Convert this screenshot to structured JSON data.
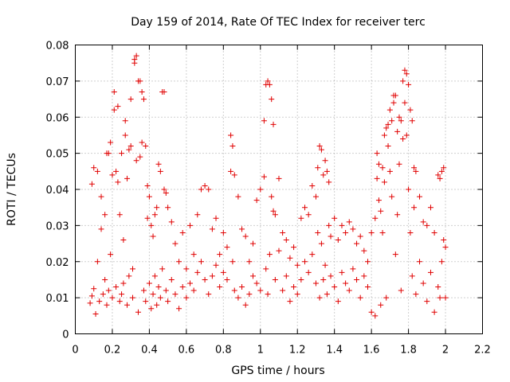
{
  "chart_data": {
    "type": "scatter",
    "title": "Day 159 of 2014, Rate Of TEC Index for receiver terc",
    "xlabel": "GPS time / hours",
    "ylabel": "ROTI / TECUs",
    "xlim": [
      0,
      2.2
    ],
    "ylim": [
      0,
      0.08
    ],
    "xticks": [
      "0",
      "0.2",
      "0.4",
      "0.6",
      "0.8",
      "1",
      "1.2",
      "1.4",
      "1.6",
      "1.8",
      "2",
      "2.2"
    ],
    "yticks": [
      "0",
      "0.01",
      "0.02",
      "0.03",
      "0.04",
      "0.05",
      "0.06",
      "0.07",
      "0.08"
    ],
    "grid": true,
    "marker": "+",
    "color": "#e00000",
    "series": [
      {
        "name": "terc",
        "points": [
          [
            0.08,
            0.0085
          ],
          [
            0.09,
            0.0105
          ],
          [
            0.09,
            0.0415
          ],
          [
            0.1,
            0.046
          ],
          [
            0.1,
            0.0125
          ],
          [
            0.11,
            0.0055
          ],
          [
            0.12,
            0.02
          ],
          [
            0.12,
            0.045
          ],
          [
            0.13,
            0.009
          ],
          [
            0.14,
            0.029
          ],
          [
            0.14,
            0.038
          ],
          [
            0.15,
            0.011
          ],
          [
            0.16,
            0.033
          ],
          [
            0.16,
            0.015
          ],
          [
            0.17,
            0.05
          ],
          [
            0.17,
            0.008
          ],
          [
            0.18,
            0.05
          ],
          [
            0.18,
            0.012
          ],
          [
            0.19,
            0.053
          ],
          [
            0.19,
            0.022
          ],
          [
            0.2,
            0.044
          ],
          [
            0.2,
            0.01
          ],
          [
            0.21,
            0.062
          ],
          [
            0.21,
            0.067
          ],
          [
            0.22,
            0.045
          ],
          [
            0.22,
            0.013
          ],
          [
            0.23,
            0.042
          ],
          [
            0.23,
            0.063
          ],
          [
            0.24,
            0.033
          ],
          [
            0.24,
            0.009
          ],
          [
            0.25,
            0.05
          ],
          [
            0.25,
            0.011
          ],
          [
            0.26,
            0.026
          ],
          [
            0.26,
            0.014
          ],
          [
            0.27,
            0.055
          ],
          [
            0.27,
            0.059
          ],
          [
            0.28,
            0.043
          ],
          [
            0.28,
            0.008
          ],
          [
            0.29,
            0.051
          ],
          [
            0.29,
            0.016
          ],
          [
            0.3,
            0.065
          ],
          [
            0.3,
            0.052
          ],
          [
            0.31,
            0.018
          ],
          [
            0.31,
            0.01
          ],
          [
            0.32,
            0.075
          ],
          [
            0.32,
            0.076
          ],
          [
            0.33,
            0.077
          ],
          [
            0.33,
            0.048
          ],
          [
            0.34,
            0.07
          ],
          [
            0.34,
            0.006
          ],
          [
            0.35,
            0.07
          ],
          [
            0.35,
            0.049
          ],
          [
            0.36,
            0.067
          ],
          [
            0.36,
            0.053
          ],
          [
            0.37,
            0.065
          ],
          [
            0.37,
            0.012
          ],
          [
            0.38,
            0.052
          ],
          [
            0.38,
            0.009
          ],
          [
            0.39,
            0.041
          ],
          [
            0.39,
            0.032
          ],
          [
            0.4,
            0.038
          ],
          [
            0.4,
            0.014
          ],
          [
            0.41,
            0.03
          ],
          [
            0.41,
            0.007
          ],
          [
            0.42,
            0.027
          ],
          [
            0.42,
            0.011
          ],
          [
            0.43,
            0.033
          ],
          [
            0.43,
            0.016
          ],
          [
            0.44,
            0.035
          ],
          [
            0.44,
            0.008
          ],
          [
            0.45,
            0.047
          ],
          [
            0.45,
            0.013
          ],
          [
            0.46,
            0.045
          ],
          [
            0.46,
            0.01
          ],
          [
            0.47,
            0.067
          ],
          [
            0.47,
            0.018
          ],
          [
            0.48,
            0.067
          ],
          [
            0.48,
            0.04
          ],
          [
            0.49,
            0.039
          ],
          [
            0.49,
            0.012
          ],
          [
            0.5,
            0.035
          ],
          [
            0.5,
            0.009
          ],
          [
            0.52,
            0.031
          ],
          [
            0.52,
            0.015
          ],
          [
            0.54,
            0.025
          ],
          [
            0.54,
            0.011
          ],
          [
            0.56,
            0.02
          ],
          [
            0.56,
            0.007
          ],
          [
            0.58,
            0.028
          ],
          [
            0.58,
            0.013
          ],
          [
            0.6,
            0.018
          ],
          [
            0.6,
            0.01
          ],
          [
            0.62,
            0.03
          ],
          [
            0.62,
            0.014
          ],
          [
            0.64,
            0.022
          ],
          [
            0.64,
            0.012
          ],
          [
            0.66,
            0.033
          ],
          [
            0.66,
            0.017
          ],
          [
            0.68,
            0.04
          ],
          [
            0.68,
            0.02
          ],
          [
            0.7,
            0.041
          ],
          [
            0.7,
            0.015
          ],
          [
            0.72,
            0.04
          ],
          [
            0.72,
            0.011
          ],
          [
            0.74,
            0.029
          ],
          [
            0.74,
            0.016
          ],
          [
            0.76,
            0.032
          ],
          [
            0.76,
            0.019
          ],
          [
            0.78,
            0.022
          ],
          [
            0.78,
            0.013
          ],
          [
            0.8,
            0.028
          ],
          [
            0.8,
            0.017
          ],
          [
            0.82,
            0.024
          ],
          [
            0.82,
            0.015
          ],
          [
            0.84,
            0.055
          ],
          [
            0.84,
            0.045
          ],
          [
            0.85,
            0.052
          ],
          [
            0.85,
            0.02
          ],
          [
            0.86,
            0.044
          ],
          [
            0.86,
            0.012
          ],
          [
            0.88,
            0.038
          ],
          [
            0.88,
            0.01
          ],
          [
            0.9,
            0.029
          ],
          [
            0.9,
            0.013
          ],
          [
            0.92,
            0.027
          ],
          [
            0.92,
            0.008
          ],
          [
            0.94,
            0.02
          ],
          [
            0.94,
            0.011
          ],
          [
            0.96,
            0.025
          ],
          [
            0.96,
            0.016
          ],
          [
            0.98,
            0.037
          ],
          [
            0.98,
            0.014
          ],
          [
            1.0,
            0.04
          ],
          [
            1.0,
            0.012
          ],
          [
            1.02,
            0.0435
          ],
          [
            1.02,
            0.059
          ],
          [
            1.03,
            0.069
          ],
          [
            1.03,
            0.018
          ],
          [
            1.04,
            0.07
          ],
          [
            1.04,
            0.011
          ],
          [
            1.05,
            0.069
          ],
          [
            1.05,
            0.022
          ],
          [
            1.06,
            0.065
          ],
          [
            1.06,
            0.038
          ],
          [
            1.07,
            0.058
          ],
          [
            1.07,
            0.034
          ],
          [
            1.08,
            0.033
          ],
          [
            1.08,
            0.015
          ],
          [
            1.1,
            0.043
          ],
          [
            1.1,
            0.023
          ],
          [
            1.12,
            0.028
          ],
          [
            1.12,
            0.012
          ],
          [
            1.14,
            0.026
          ],
          [
            1.14,
            0.016
          ],
          [
            1.16,
            0.021
          ],
          [
            1.16,
            0.009
          ],
          [
            1.18,
            0.024
          ],
          [
            1.18,
            0.013
          ],
          [
            1.2,
            0.019
          ],
          [
            1.2,
            0.011
          ],
          [
            1.22,
            0.032
          ],
          [
            1.22,
            0.015
          ],
          [
            1.24,
            0.035
          ],
          [
            1.24,
            0.02
          ],
          [
            1.26,
            0.033
          ],
          [
            1.26,
            0.017
          ],
          [
            1.28,
            0.041
          ],
          [
            1.28,
            0.022
          ],
          [
            1.3,
            0.038
          ],
          [
            1.3,
            0.014
          ],
          [
            1.31,
            0.046
          ],
          [
            1.31,
            0.028
          ],
          [
            1.32,
            0.052
          ],
          [
            1.32,
            0.01
          ],
          [
            1.33,
            0.051
          ],
          [
            1.33,
            0.025
          ],
          [
            1.34,
            0.044
          ],
          [
            1.34,
            0.015
          ],
          [
            1.35,
            0.048
          ],
          [
            1.35,
            0.019
          ],
          [
            1.36,
            0.045
          ],
          [
            1.36,
            0.011
          ],
          [
            1.37,
            0.042
          ],
          [
            1.37,
            0.03
          ],
          [
            1.38,
            0.027
          ],
          [
            1.38,
            0.016
          ],
          [
            1.4,
            0.032
          ],
          [
            1.4,
            0.013
          ],
          [
            1.42,
            0.026
          ],
          [
            1.42,
            0.009
          ],
          [
            1.44,
            0.03
          ],
          [
            1.44,
            0.017
          ],
          [
            1.46,
            0.028
          ],
          [
            1.46,
            0.014
          ],
          [
            1.48,
            0.031
          ],
          [
            1.48,
            0.012
          ],
          [
            1.5,
            0.029
          ],
          [
            1.5,
            0.018
          ],
          [
            1.52,
            0.025
          ],
          [
            1.52,
            0.015
          ],
          [
            1.54,
            0.027
          ],
          [
            1.54,
            0.01
          ],
          [
            1.56,
            0.023
          ],
          [
            1.56,
            0.016
          ],
          [
            1.58,
            0.02
          ],
          [
            1.58,
            0.013
          ],
          [
            1.6,
            0.028
          ],
          [
            1.6,
            0.006
          ],
          [
            1.62,
            0.032
          ],
          [
            1.62,
            0.005
          ],
          [
            1.63,
            0.043
          ],
          [
            1.63,
            0.05
          ],
          [
            1.64,
            0.047
          ],
          [
            1.64,
            0.037
          ],
          [
            1.65,
            0.034
          ],
          [
            1.65,
            0.008
          ],
          [
            1.66,
            0.028
          ],
          [
            1.66,
            0.046
          ],
          [
            1.67,
            0.055
          ],
          [
            1.67,
            0.042
          ],
          [
            1.68,
            0.057
          ],
          [
            1.68,
            0.01
          ],
          [
            1.69,
            0.058
          ],
          [
            1.69,
            0.052
          ],
          [
            1.7,
            0.062
          ],
          [
            1.7,
            0.045
          ],
          [
            1.71,
            0.059
          ],
          [
            1.71,
            0.038
          ],
          [
            1.72,
            0.064
          ],
          [
            1.72,
            0.066
          ],
          [
            1.73,
            0.066
          ],
          [
            1.73,
            0.022
          ],
          [
            1.74,
            0.056
          ],
          [
            1.74,
            0.033
          ],
          [
            1.75,
            0.06
          ],
          [
            1.75,
            0.047
          ],
          [
            1.76,
            0.059
          ],
          [
            1.76,
            0.012
          ],
          [
            1.77,
            0.07
          ],
          [
            1.77,
            0.054
          ],
          [
            1.78,
            0.073
          ],
          [
            1.78,
            0.064
          ],
          [
            1.79,
            0.072
          ],
          [
            1.79,
            0.055
          ],
          [
            1.8,
            0.069
          ],
          [
            1.8,
            0.04
          ],
          [
            1.81,
            0.062
          ],
          [
            1.81,
            0.028
          ],
          [
            1.82,
            0.059
          ],
          [
            1.82,
            0.016
          ],
          [
            1.83,
            0.046
          ],
          [
            1.83,
            0.035
          ],
          [
            1.84,
            0.045
          ],
          [
            1.84,
            0.011
          ],
          [
            1.86,
            0.038
          ],
          [
            1.86,
            0.02
          ],
          [
            1.88,
            0.031
          ],
          [
            1.88,
            0.014
          ],
          [
            1.9,
            0.03
          ],
          [
            1.9,
            0.009
          ],
          [
            1.92,
            0.035
          ],
          [
            1.92,
            0.017
          ],
          [
            1.94,
            0.028
          ],
          [
            1.94,
            0.006
          ],
          [
            1.96,
            0.044
          ],
          [
            1.96,
            0.013
          ],
          [
            1.97,
            0.043
          ],
          [
            1.97,
            0.01
          ],
          [
            1.98,
            0.045
          ],
          [
            1.98,
            0.02
          ],
          [
            1.99,
            0.046
          ],
          [
            1.99,
            0.026
          ],
          [
            2.0,
            0.024
          ],
          [
            2.0,
            0.01
          ]
        ]
      }
    ]
  }
}
